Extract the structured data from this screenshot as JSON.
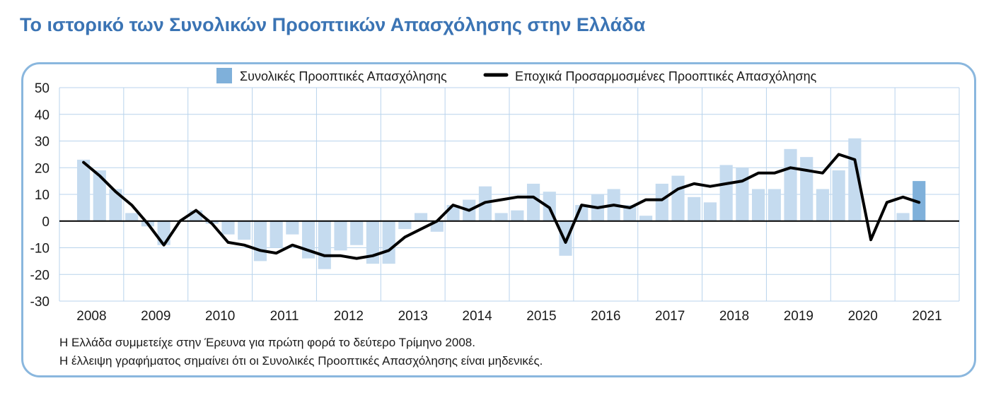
{
  "title": "Το ιστορικό των Συνολικών Προοπτικών Απασχόλησης στην Ελλάδα",
  "notes": [
    "Η Ελλάδα συμμετείχε στην Έρευνα για πρώτη φορά το δεύτερο Τρίμηνο 2008.",
    "Η έλλειψη γραφήματος σημαίνει ότι οι Συνολικές Προοπτικές Απασχόλησης είναι μηδενικές."
  ],
  "colors": {
    "bar": "#c5dbef",
    "bar_latest": "#7fb0da",
    "line": "#000000",
    "grid": "#b8d3ec",
    "frame": "#8ab7de",
    "title": "#3b74b4"
  },
  "chart_data": {
    "type": "bar+line",
    "ylim": [
      -30,
      50
    ],
    "yticks": [
      50,
      40,
      30,
      20,
      10,
      0,
      -10,
      -20,
      -30
    ],
    "xlabels": [
      "2008",
      "2009",
      "2010",
      "2011",
      "2012",
      "2013",
      "2014",
      "2015",
      "2016",
      "2017",
      "2018",
      "2019",
      "2020",
      "2021"
    ],
    "grid": true,
    "legend_position": "top-center",
    "start": "2008 Q2",
    "series": [
      {
        "name": "Συνολικές Προοπτικές Απασχόλησης",
        "kind": "bar",
        "values": [
          23,
          19,
          12,
          3,
          -2,
          -9,
          0,
          4,
          -1,
          -5,
          -7,
          -15,
          -10,
          -5,
          -14,
          -18,
          -11,
          -9,
          -16,
          -16,
          -3,
          3,
          -4,
          6,
          8,
          13,
          3,
          4,
          14,
          11,
          -13,
          6,
          10,
          12,
          6,
          2,
          14,
          17,
          9,
          7,
          21,
          20,
          12,
          12,
          27,
          24,
          12,
          19,
          31,
          0,
          0,
          3,
          15
        ]
      },
      {
        "name": "Εποχικά Προσαρμοσμένες Προοπτικές Απασχόλησης",
        "kind": "line",
        "values": [
          22,
          17,
          11,
          6,
          -1,
          -9,
          0,
          4,
          -1,
          -8,
          -9,
          -11,
          -12,
          -9,
          -11,
          -13,
          -13,
          -14,
          -13,
          -11,
          -6,
          -3,
          0,
          6,
          4,
          7,
          8,
          9,
          9,
          5,
          -8,
          6,
          5,
          6,
          5,
          8,
          8,
          12,
          14,
          13,
          14,
          15,
          18,
          18,
          20,
          19,
          18,
          25,
          23,
          -7,
          7,
          9,
          7
        ]
      }
    ]
  }
}
